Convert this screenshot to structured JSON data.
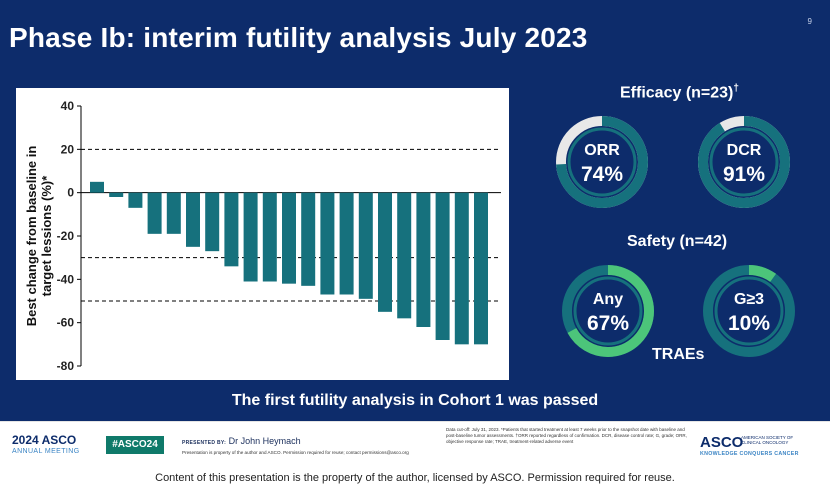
{
  "slide": {
    "title": "Phase Ib: interim futility analysis July 2023",
    "number": "9",
    "conclusion": "The first futility analysis in Cohort 1 was passed"
  },
  "chart_data": {
    "type": "bar",
    "title": "",
    "ylabel": "Best change from baseline in target lessions (%)*",
    "ylim": [
      -80,
      40
    ],
    "yticks": [
      40,
      20,
      0,
      -20,
      -40,
      -60,
      -80
    ],
    "reference_lines": [
      20,
      -30,
      -50
    ],
    "bar_color": "#16717d",
    "values": [
      5,
      -2,
      -7,
      -19,
      -19,
      -25,
      -27,
      -34,
      -41,
      -41,
      -42,
      -43,
      -47,
      -47,
      -49,
      -55,
      -58,
      -62,
      -68,
      -70,
      -70
    ]
  },
  "efficacy": {
    "title": "Efficacy (n=23)",
    "dagger": "†",
    "metrics": [
      {
        "name": "ORR",
        "value": "74%",
        "fraction": 0.74,
        "color": "#16717d",
        "track": "#e8e8e8"
      },
      {
        "name": "DCR",
        "value": "91%",
        "fraction": 0.91,
        "color": "#16717d",
        "track": "#e8e8e8"
      }
    ]
  },
  "safety": {
    "title": "Safety (n=42)",
    "traes_label": "TRAEs",
    "metrics": [
      {
        "name": "Any",
        "value": "67%",
        "fraction": 0.67,
        "color": "#4cc57a",
        "track": "#16717d"
      },
      {
        "name": "G≥3",
        "value": "10%",
        "fraction": 0.1,
        "color": "#4cc57a",
        "track": "#16717d"
      }
    ]
  },
  "footer": {
    "meeting_year": "2024 ASCO",
    "meeting_sub": "ANNUAL MEETING",
    "hashtag": "#ASCO24",
    "presented_by": "PRESENTED BY:",
    "presenter": "Dr John Heymach",
    "property_small": "Presentation is property of the author and ASCO. Permission required for reuse; contact permissions@asco.org",
    "footnote": "Data cut-off: July 31, 2023. *Patients that started treatment at least 7 weeks prior to the snapshot date with baseline and post-baseline tumor assessments. †ORR reported regardless of confirmation. DCR, disease control rate; G, grade; ORR, objective response rate; TRAE, treatment-related adverse event",
    "asco_logo": "ASCO",
    "asco_society": "AMERICAN SOCIETY OF CLINICAL ONCOLOGY",
    "asco_tagline": "KNOWLEDGE CONQUERS CANCER"
  },
  "bottom_notice": "Content of this presentation is the property of the author, licensed by ASCO. Permission required for reuse."
}
